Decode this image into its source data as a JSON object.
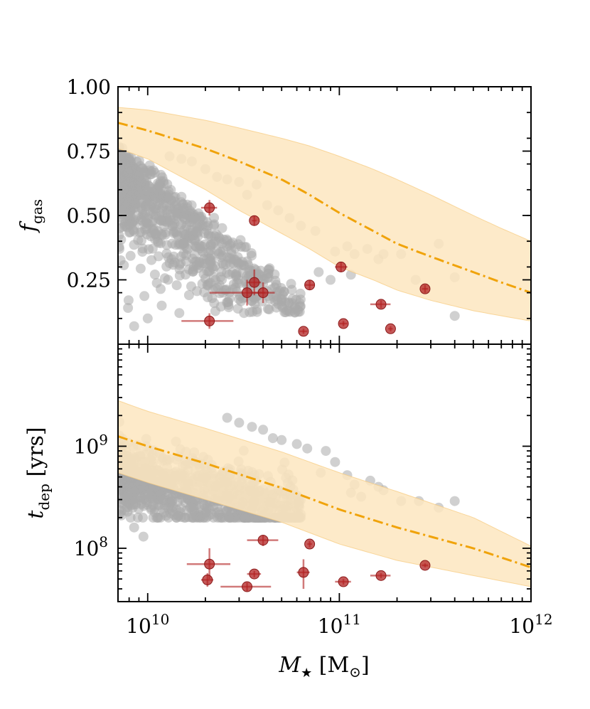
{
  "chart_data": [
    {
      "type": "scatter",
      "panel": "top",
      "ylabel": "f_gas",
      "ylabel_main": "f",
      "ylabel_sub": "gas",
      "xscale": "log",
      "xlim": [
        7000000000.0,
        1000000000000.0
      ],
      "ylim": [
        0.0,
        1.0
      ],
      "yticks": [
        0.25,
        0.5,
        0.75,
        1.0
      ],
      "ytick_labels": [
        "0.25",
        "0.50",
        "0.75",
        "1.00"
      ],
      "colors": {
        "cloud": "#a9a9a9",
        "band": "#fde6bf",
        "model_line": "#f0a30a",
        "obs": "#b22222"
      },
      "model_line": {
        "x": [
          7000000000.0,
          10000000000.0,
          20000000000.0,
          30000000000.0,
          50000000000.0,
          70000000000.0,
          100000000000.0,
          150000000000.0,
          200000000000.0,
          300000000000.0,
          500000000000.0,
          700000000000.0,
          1000000000000.0
        ],
        "y": [
          0.86,
          0.83,
          0.76,
          0.71,
          0.64,
          0.58,
          0.51,
          0.44,
          0.39,
          0.34,
          0.28,
          0.24,
          0.2
        ]
      },
      "band_upper": {
        "x": [
          7000000000.0,
          10000000000.0,
          20000000000.0,
          30000000000.0,
          50000000000.0,
          70000000000.0,
          100000000000.0,
          150000000000.0,
          200000000000.0,
          300000000000.0,
          500000000000.0,
          700000000000.0,
          1000000000000.0
        ],
        "y": [
          0.92,
          0.91,
          0.87,
          0.84,
          0.8,
          0.77,
          0.73,
          0.68,
          0.64,
          0.58,
          0.5,
          0.45,
          0.4
        ]
      },
      "band_lower": {
        "x": [
          7000000000.0,
          10000000000.0,
          20000000000.0,
          30000000000.0,
          50000000000.0,
          70000000000.0,
          100000000000.0,
          150000000000.0,
          200000000000.0,
          300000000000.0,
          500000000000.0,
          700000000000.0,
          1000000000000.0
        ],
        "y": [
          0.76,
          0.72,
          0.6,
          0.52,
          0.43,
          0.37,
          0.3,
          0.25,
          0.21,
          0.17,
          0.13,
          0.11,
          0.09
        ]
      },
      "cloud_extra": [
        {
          "x": 13000000000.0,
          "y": 0.73
        },
        {
          "x": 15000000000.0,
          "y": 0.72
        },
        {
          "x": 17000000000.0,
          "y": 0.71
        },
        {
          "x": 20000000000.0,
          "y": 0.68
        },
        {
          "x": 23000000000.0,
          "y": 0.65
        },
        {
          "x": 26000000000.0,
          "y": 0.64
        },
        {
          "x": 30000000000.0,
          "y": 0.63
        },
        {
          "x": 33000000000.0,
          "y": 0.58
        },
        {
          "x": 37000000000.0,
          "y": 0.62
        },
        {
          "x": 42000000000.0,
          "y": 0.54
        },
        {
          "x": 48000000000.0,
          "y": 0.52
        },
        {
          "x": 55000000000.0,
          "y": 0.49
        },
        {
          "x": 63000000000.0,
          "y": 0.46
        },
        {
          "x": 75000000000.0,
          "y": 0.44
        },
        {
          "x": 95000000000.0,
          "y": 0.36
        },
        {
          "x": 110000000000.0,
          "y": 0.38
        },
        {
          "x": 120000000000.0,
          "y": 0.35
        },
        {
          "x": 140000000000.0,
          "y": 0.37
        },
        {
          "x": 160000000000.0,
          "y": 0.33
        },
        {
          "x": 170000000000.0,
          "y": 0.35
        },
        {
          "x": 210000000000.0,
          "y": 0.35
        },
        {
          "x": 250000000000.0,
          "y": 0.25
        },
        {
          "x": 330000000000.0,
          "y": 0.39
        },
        {
          "x": 400000000000.0,
          "y": 0.26
        },
        {
          "x": 400000000000.0,
          "y": 0.11
        },
        {
          "x": 90000000000.0,
          "y": 0.25
        },
        {
          "x": 78000000000.0,
          "y": 0.28
        },
        {
          "x": 10000000000.0,
          "y": 0.1
        },
        {
          "x": 8500000000.0,
          "y": 0.07
        },
        {
          "x": 62000000000.0,
          "y": 0.16
        },
        {
          "x": 50000000000.0,
          "y": 0.15
        },
        {
          "x": 115000000000.0,
          "y": 0.27
        }
      ],
      "observations": [
        {
          "x": 21000000000.0,
          "y": 0.53,
          "xerr": [
            19000000000.0,
            23000000000.0
          ],
          "yerr": [
            0.5,
            0.56
          ]
        },
        {
          "x": 36000000000.0,
          "y": 0.48,
          "xerr": [
            35000000000.0,
            37000000000.0
          ],
          "yerr": [
            0.46,
            0.5
          ]
        },
        {
          "x": 33000000000.0,
          "y": 0.2,
          "xerr": [
            21000000000.0,
            41000000000.0
          ],
          "yerr": [
            0.15,
            0.25
          ]
        },
        {
          "x": 36000000000.0,
          "y": 0.24,
          "xerr": [
            33000000000.0,
            39000000000.0
          ],
          "yerr": [
            0.19,
            0.29
          ]
        },
        {
          "x": 40000000000.0,
          "y": 0.2,
          "xerr": [
            35000000000.0,
            46000000000.0
          ],
          "yerr": [
            0.16,
            0.24
          ]
        },
        {
          "x": 21000000000.0,
          "y": 0.09,
          "xerr": [
            15000000000.0,
            28000000000.0
          ],
          "yerr": [
            0.06,
            0.12
          ]
        },
        {
          "x": 70000000000.0,
          "y": 0.23,
          "xerr": [
            66000000000.0,
            74000000000.0
          ],
          "yerr": [
            0.21,
            0.25
          ]
        },
        {
          "x": 65000000000.0,
          "y": 0.05,
          "xerr": [
            62000000000.0,
            68000000000.0
          ],
          "yerr": [
            0.04,
            0.06
          ]
        },
        {
          "x": 102000000000.0,
          "y": 0.3,
          "xerr": [
            95000000000.0,
            110000000000.0
          ],
          "yerr": [
            0.28,
            0.32
          ]
        },
        {
          "x": 105000000000.0,
          "y": 0.08,
          "xerr": [
            100000000000.0,
            110000000000.0
          ],
          "yerr": [
            0.07,
            0.09
          ]
        },
        {
          "x": 165000000000.0,
          "y": 0.155,
          "xerr": [
            145000000000.0,
            185000000000.0
          ],
          "yerr": [
            0.14,
            0.17
          ]
        },
        {
          "x": 185000000000.0,
          "y": 0.06,
          "xerr": [
            180000000000.0,
            190000000000.0
          ],
          "yerr": [
            0.05,
            0.07
          ]
        },
        {
          "x": 280000000000.0,
          "y": 0.215,
          "xerr": [
            270000000000.0,
            290000000000.0
          ],
          "yerr": [
            0.2,
            0.23
          ]
        }
      ]
    },
    {
      "type": "scatter",
      "panel": "bottom",
      "xlabel": "M_star [M_sun]",
      "xlabel_main": "M",
      "xlabel_sub": "★",
      "xlabel_unit": " [M",
      "xlabel_unit_sub": "⊙",
      "xlabel_unit_close": "]",
      "ylabel": "t_dep [yrs]",
      "ylabel_main": "t",
      "ylabel_sub": "dep",
      "ylabel_unit": " [yrs]",
      "xscale": "log",
      "yscale": "log",
      "xlim": [
        7000000000.0,
        1000000000000.0
      ],
      "ylim": [
        30000000.0,
        10000000000.0
      ],
      "xticks": [
        10000000000.0,
        100000000000.0,
        1000000000000.0
      ],
      "xtick_base": "10",
      "xtick_exponents": [
        "10",
        "11",
        "12"
      ],
      "yticks": [
        100000000.0,
        1000000000.0
      ],
      "ytick_base": "10",
      "ytick_exponents": [
        "8",
        "9"
      ],
      "model_line": {
        "x": [
          7000000000.0,
          10000000000.0,
          20000000000.0,
          50000000000.0,
          100000000000.0,
          200000000000.0,
          500000000000.0,
          1000000000000.0
        ],
        "y": [
          1250000000.0,
          1000000000.0,
          680000000.0,
          390000000.0,
          240000000.0,
          160000000.0,
          100000000.0,
          65000000.0
        ]
      },
      "band_upper": {
        "x": [
          7000000000.0,
          10000000000.0,
          20000000000.0,
          50000000000.0,
          100000000000.0,
          200000000000.0,
          500000000000.0,
          1000000000000.0
        ],
        "y": [
          2800000000.0,
          2200000000.0,
          1500000000.0,
          880000000.0,
          550000000.0,
          360000000.0,
          200000000.0,
          105000000.0
        ]
      },
      "band_lower": {
        "x": [
          7000000000.0,
          10000000000.0,
          20000000000.0,
          50000000000.0,
          100000000000.0,
          200000000000.0,
          500000000000.0,
          1000000000000.0
        ],
        "y": [
          550000000.0,
          440000000.0,
          300000000.0,
          180000000.0,
          110000000.0,
          76000000.0,
          54000000.0,
          42000000.0
        ]
      },
      "cloud_extra": [
        {
          "x": 26000000000.0,
          "y": 1900000000.0
        },
        {
          "x": 30000000000.0,
          "y": 1700000000.0
        },
        {
          "x": 35000000000.0,
          "y": 1550000000.0
        },
        {
          "x": 40000000000.0,
          "y": 1450000000.0
        },
        {
          "x": 45000000000.0,
          "y": 1200000000.0
        },
        {
          "x": 50000000000.0,
          "y": 1150000000.0
        },
        {
          "x": 60000000000.0,
          "y": 1050000000.0
        },
        {
          "x": 68000000000.0,
          "y": 950000000.0
        },
        {
          "x": 85000000000.0,
          "y": 900000000.0
        },
        {
          "x": 95000000000.0,
          "y": 700000000.0
        },
        {
          "x": 110000000000.0,
          "y": 520000000.0
        },
        {
          "x": 120000000000.0,
          "y": 420000000.0
        },
        {
          "x": 145000000000.0,
          "y": 460000000.0
        },
        {
          "x": 160000000000.0,
          "y": 400000000.0
        },
        {
          "x": 170000000000.0,
          "y": 370000000.0
        },
        {
          "x": 130000000000.0,
          "y": 320000000.0
        },
        {
          "x": 210000000000.0,
          "y": 290000000.0
        },
        {
          "x": 260000000000.0,
          "y": 290000000.0
        },
        {
          "x": 330000000000.0,
          "y": 250000000.0
        },
        {
          "x": 400000000000.0,
          "y": 290000000.0
        },
        {
          "x": 9500000000.0,
          "y": 130000000.0
        },
        {
          "x": 8500000000.0,
          "y": 160000000.0
        },
        {
          "x": 115000000000.0,
          "y": 350000000.0
        },
        {
          "x": 80000000000.0,
          "y": 550000000.0
        }
      ],
      "observations": [
        {
          "x": 21000000000.0,
          "y": 70000000.0,
          "xerr": [
            16000000000.0,
            27000000000.0
          ],
          "yerr": [
            50000000.0,
            100000000.0
          ]
        },
        {
          "x": 20500000000.0,
          "y": 49000000.0,
          "xerr": [
            19000000000.0,
            22000000000.0
          ],
          "yerr": [
            42000000.0,
            57000000.0
          ]
        },
        {
          "x": 33000000000.0,
          "y": 42000000.0,
          "xerr": [
            24000000000.0,
            44000000000.0
          ],
          "yerr": [
            38000000.0,
            46000000.0
          ]
        },
        {
          "x": 36000000000.0,
          "y": 56000000.0,
          "xerr": [
            33000000000.0,
            39000000000.0
          ],
          "yerr": [
            52000000.0,
            60000000.0
          ]
        },
        {
          "x": 40000000000.0,
          "y": 120000000.0,
          "xerr": [
            33000000000.0,
            48000000000.0
          ],
          "yerr": [
            105000000.0,
            135000000.0
          ]
        },
        {
          "x": 65000000000.0,
          "y": 58000000.0,
          "xerr": [
            60000000000.0,
            70000000000.0
          ],
          "yerr": [
            40000000.0,
            78000000.0
          ]
        },
        {
          "x": 70000000000.0,
          "y": 110000000.0,
          "xerr": [
            68000000000.0,
            72000000000.0
          ],
          "yerr": [
            102000000.0,
            118000000.0
          ]
        },
        {
          "x": 105000000000.0,
          "y": 47000000.0,
          "xerr": [
            95000000000.0,
            115000000000.0
          ],
          "yerr": [
            44000000.0,
            50000000.0
          ]
        },
        {
          "x": 165000000000.0,
          "y": 54000000.0,
          "xerr": [
            145000000000.0,
            185000000000.0
          ],
          "yerr": [
            51000000.0,
            57000000.0
          ]
        },
        {
          "x": 280000000000.0,
          "y": 68000000.0,
          "xerr": [
            270000000000.0,
            290000000000.0
          ],
          "yerr": [
            65000000.0,
            71000000.0
          ]
        }
      ]
    }
  ]
}
